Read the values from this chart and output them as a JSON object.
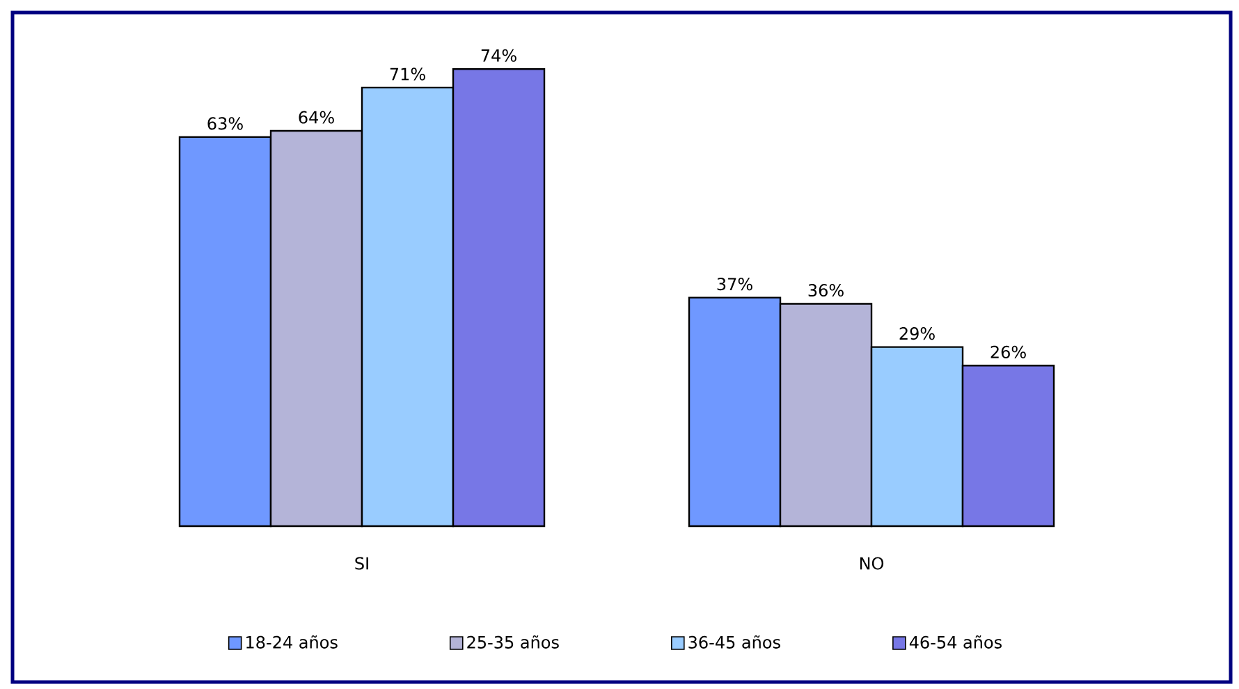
{
  "chart_data": {
    "type": "bar",
    "categories": [
      "SI",
      "NO"
    ],
    "series": [
      {
        "name": "18-24 años",
        "color": "#6f98ff",
        "values": [
          63,
          37
        ],
        "value_labels": [
          "63%",
          "37%"
        ]
      },
      {
        "name": "25-35 años",
        "color": "#b4b4d8",
        "values": [
          64,
          36
        ],
        "value_labels": [
          "64%",
          "36%"
        ]
      },
      {
        "name": "36-45 años",
        "color": "#99ccff",
        "values": [
          71,
          29
        ],
        "value_labels": [
          "71%",
          "29%"
        ]
      },
      {
        "name": "46-54 años",
        "color": "#7777e6",
        "values": [
          74,
          26
        ],
        "value_labels": [
          "74%",
          "26%"
        ]
      }
    ],
    "legend": "bottom"
  }
}
